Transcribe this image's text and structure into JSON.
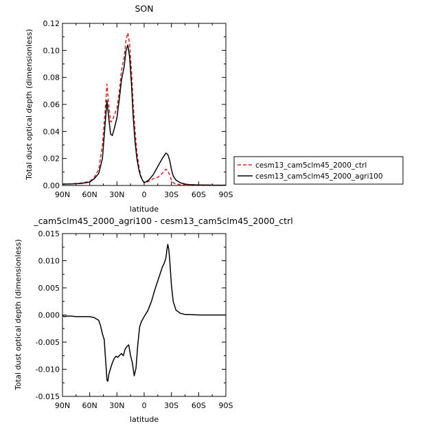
{
  "chart_data": [
    {
      "type": "line",
      "title": "SON",
      "xlabel": "latitude",
      "ylabel": "Total dust optical depth (dimensionless)",
      "xlim": [
        90,
        -90
      ],
      "ylim": [
        0,
        0.12
      ],
      "x_ticks": [
        90,
        60,
        30,
        0,
        -30,
        -60,
        -90
      ],
      "x_tick_labels": [
        "90N",
        "60N",
        "30N",
        "0",
        "30S",
        "60S",
        "90S"
      ],
      "y_ticks": [
        0,
        0.02,
        0.04,
        0.06,
        0.08,
        0.1,
        0.12
      ],
      "y_tick_labels": [
        "0.00",
        "0.02",
        "0.04",
        "0.06",
        "0.08",
        "0.10",
        "0.12"
      ],
      "legend_position": "right",
      "x": [
        90,
        80,
        70,
        60,
        55,
        50,
        46,
        43,
        41,
        39,
        37,
        35,
        33,
        30,
        27,
        25,
        22,
        20,
        18,
        16,
        14,
        12,
        10,
        8,
        6,
        4,
        2,
        0,
        -5,
        -10,
        -15,
        -20,
        -22,
        -24,
        -26,
        -28,
        -30,
        -32,
        -35,
        -40,
        -45,
        -50,
        -60,
        -70,
        -80,
        -90
      ],
      "series": [
        {
          "name": "cesm13_cam5clm45_2000_ctrl",
          "color": "#d62020",
          "dash": "dashed",
          "values": [
            0.001,
            0.0012,
            0.0018,
            0.003,
            0.006,
            0.012,
            0.03,
            0.055,
            0.075,
            0.06,
            0.047,
            0.048,
            0.052,
            0.057,
            0.072,
            0.085,
            0.095,
            0.108,
            0.113,
            0.105,
            0.085,
            0.06,
            0.04,
            0.025,
            0.015,
            0.008,
            0.004,
            0.002,
            0.003,
            0.005,
            0.006,
            0.009,
            0.011,
            0.012,
            0.011,
            0.008,
            0.004,
            0.002,
            0.001,
            0.0006,
            0.0004,
            0.0003,
            0.0002,
            0.0002,
            0.0002,
            0.0002
          ]
        },
        {
          "name": "cesm13_cam5clm45_2000_agri100",
          "color": "#000000",
          "dash": "solid",
          "values": [
            0.001,
            0.0011,
            0.0015,
            0.0025,
            0.005,
            0.009,
            0.02,
            0.045,
            0.063,
            0.05,
            0.038,
            0.037,
            0.042,
            0.05,
            0.066,
            0.078,
            0.088,
            0.1,
            0.104,
            0.095,
            0.075,
            0.05,
            0.032,
            0.02,
            0.012,
            0.007,
            0.004,
            0.002,
            0.004,
            0.008,
            0.014,
            0.02,
            0.022,
            0.024,
            0.023,
            0.019,
            0.012,
            0.007,
            0.004,
            0.002,
            0.001,
            0.0006,
            0.0004,
            0.0003,
            0.0002,
            0.0002
          ]
        }
      ]
    },
    {
      "type": "line",
      "title": "_cam5clm45_2000_agri100 - cesm13_cam5clm45_2000_ctrl",
      "xlabel": "latitude",
      "ylabel": "Total dust optical depth (dimensionless)",
      "xlim": [
        90,
        -90
      ],
      "ylim": [
        -0.015,
        0.015
      ],
      "x_ticks": [
        90,
        60,
        30,
        0,
        -30,
        -60,
        -90
      ],
      "x_tick_labels": [
        "90N",
        "60N",
        "30N",
        "0",
        "30S",
        "60S",
        "90S"
      ],
      "y_ticks": [
        -0.015,
        -0.01,
        -0.005,
        0,
        0.005,
        0.01,
        0.015
      ],
      "y_tick_labels": [
        "-0.015",
        "-0.010",
        "-0.005",
        "0.000",
        "0.005",
        "0.010",
        "0.015"
      ],
      "x": [
        90,
        88,
        85,
        80,
        75,
        70,
        65,
        60,
        55,
        50,
        48,
        46,
        44,
        43,
        42,
        41,
        40,
        39,
        37,
        35,
        33,
        31,
        29,
        27,
        25,
        23,
        21,
        19,
        17,
        15,
        13,
        11,
        9,
        7,
        5,
        3,
        1,
        0,
        -4,
        -8,
        -12,
        -16,
        -20,
        -22,
        -24,
        -25,
        -26,
        -27,
        -28,
        -30,
        -32,
        -35,
        -40,
        -45,
        -50,
        -60,
        -70,
        -80,
        -90
      ],
      "series": [
        {
          "name": "",
          "color": "#000000",
          "dash": "solid",
          "values": [
            -0.0001,
            -0.0003,
            -0.0002,
            -0.0002,
            -0.0003,
            -0.0003,
            -0.0003,
            -0.0003,
            -0.0005,
            -0.001,
            -0.002,
            -0.0035,
            -0.0045,
            -0.007,
            -0.0095,
            -0.012,
            -0.0122,
            -0.011,
            -0.0098,
            -0.0088,
            -0.008,
            -0.0076,
            -0.0078,
            -0.0074,
            -0.0071,
            -0.0075,
            -0.0063,
            -0.0058,
            -0.0055,
            -0.0075,
            -0.0088,
            -0.0112,
            -0.0098,
            -0.0055,
            -0.0022,
            -0.0012,
            -0.0006,
            -0.0003,
            0.0008,
            0.0025,
            0.0048,
            0.0068,
            0.0088,
            0.0095,
            0.0105,
            0.012,
            0.013,
            0.0122,
            0.0105,
            0.0055,
            0.0025,
            0.0009,
            0.0003,
            0.0001,
            0.0001,
            0.0,
            0.0,
            0.0,
            0.0
          ]
        }
      ]
    }
  ]
}
